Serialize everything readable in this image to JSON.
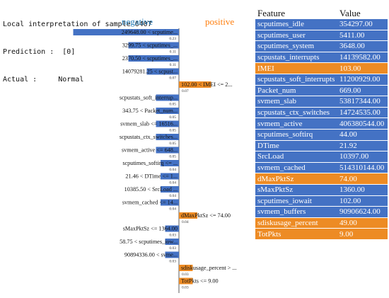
{
  "header": {
    "title_line": "Local interpretation of sample 6407",
    "prediction_line": "Prediction :  [0]",
    "actual_line": "Actual :     Normal"
  },
  "colors": {
    "negative": "#4472c4",
    "positive": "#ed8b24",
    "table_negative": "#4472c4",
    "table_positive": "#ed8b24"
  },
  "chart_data": {
    "type": "bar",
    "orientation": "horizontal",
    "class_labels": {
      "negative": "negative",
      "positive": "positive"
    },
    "bars": [
      {
        "label": "249648.00 < scputime...",
        "value": -0.23,
        "value_label": "0.23"
      },
      {
        "label": "3299.75 < scputimes_...",
        "value": -0.11,
        "value_label": "0.11"
      },
      {
        "label": "2370.50 < scputimes_...",
        "value": -0.11,
        "value_label": "0.11"
      },
      {
        "label": "14079281.25 < scpust...",
        "value": -0.07,
        "value_label": "0.07"
      },
      {
        "label": "102.00 < IMEI <= 2...",
        "value": 0.07,
        "value_label": "0.07"
      },
      {
        "label": "scpustats_soft_interrup...",
        "value": -0.05,
        "value_label": "0.05"
      },
      {
        "label": "343.75 < Packet_num...",
        "value": -0.05,
        "value_label": "0.05"
      },
      {
        "label": "svmem_slab <= 16516...",
        "value": -0.05,
        "value_label": "0.05"
      },
      {
        "label": "scpustats_ctx_switches...",
        "value": -0.05,
        "value_label": "0.05"
      },
      {
        "label": "svmem_active <= 648...",
        "value": -0.05,
        "value_label": "0.05"
      },
      {
        "label": "scputimes_softirq <= ...",
        "value": -0.04,
        "value_label": "0.04"
      },
      {
        "label": "21.46 < DTime <= 1...",
        "value": -0.04,
        "value_label": "0.04"
      },
      {
        "label": "10385.50 < SrcLoad ...",
        "value": -0.04,
        "value_label": "0.04"
      },
      {
        "label": "svmem_cached <= 14...",
        "value": -0.04,
        "value_label": "0.04"
      },
      {
        "label": "dMaxPktSz <= 74.00",
        "value": 0.04,
        "value_label": "0.04"
      },
      {
        "label": "sMaxPktSz <= 1364.00",
        "value": -0.03,
        "value_label": "0.03"
      },
      {
        "label": "58.75 < scputimes_iow...",
        "value": -0.03,
        "value_label": "0.03"
      },
      {
        "label": "90894336.00 < svme...",
        "value": -0.03,
        "value_label": "0.03"
      },
      {
        "label": "sdiskusage_percent > ...",
        "value": 0.03,
        "value_label": "0.03"
      },
      {
        "label": "TotPkts <= 9.00",
        "value": 0.03,
        "value_label": "0.03"
      }
    ]
  },
  "table": {
    "headers": [
      "Feature",
      "Value"
    ],
    "rows": [
      {
        "feature": "scputimes_idle",
        "value": "354297.00",
        "sign": "negative"
      },
      {
        "feature": "scputimes_user",
        "value": "5411.00",
        "sign": "negative"
      },
      {
        "feature": "scputimes_system",
        "value": "3648.00",
        "sign": "negative"
      },
      {
        "feature": "scpustats_interrupts",
        "value": "14139582.00",
        "sign": "negative"
      },
      {
        "feature": "IMEI",
        "value": "103.00",
        "sign": "positive"
      },
      {
        "feature": "scpustats_soft_interrupts",
        "value": "11200929.00",
        "sign": "negative"
      },
      {
        "feature": "Packet_num",
        "value": "669.00",
        "sign": "negative"
      },
      {
        "feature": "svmem_slab",
        "value": "53817344.00",
        "sign": "negative"
      },
      {
        "feature": "scpustats_ctx_switches",
        "value": "14724535.00",
        "sign": "negative"
      },
      {
        "feature": "svmem_active",
        "value": "406380544.00",
        "sign": "negative"
      },
      {
        "feature": "scputimes_softirq",
        "value": "44.00",
        "sign": "negative"
      },
      {
        "feature": "DTime",
        "value": "21.92",
        "sign": "negative"
      },
      {
        "feature": "SrcLoad",
        "value": "10397.00",
        "sign": "negative"
      },
      {
        "feature": "svmem_cached",
        "value": "514310144.00",
        "sign": "negative"
      },
      {
        "feature": "dMaxPktSz",
        "value": "74.00",
        "sign": "positive"
      },
      {
        "feature": "sMaxPktSz",
        "value": "1360.00",
        "sign": "negative"
      },
      {
        "feature": "scputimes_iowait",
        "value": "102.00",
        "sign": "negative"
      },
      {
        "feature": "svmem_buffers",
        "value": "90906624.00",
        "sign": "negative"
      },
      {
        "feature": "sdiskusage_percent",
        "value": "49.00",
        "sign": "positive"
      },
      {
        "feature": "TotPkts",
        "value": "9.00",
        "sign": "positive"
      }
    ]
  }
}
